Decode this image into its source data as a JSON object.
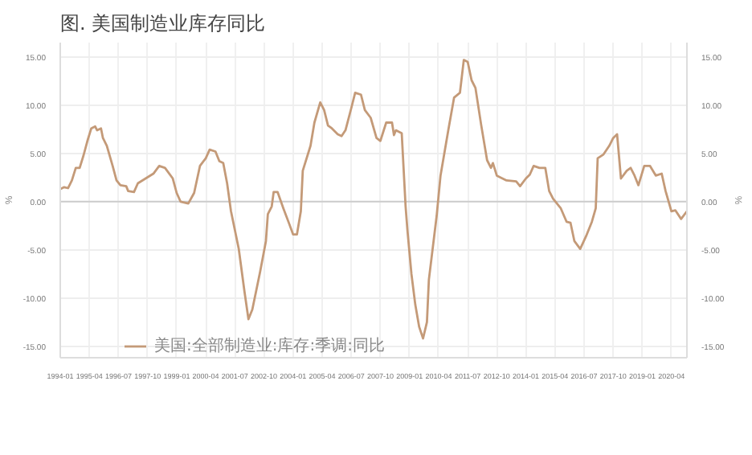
{
  "chart_data": {
    "type": "line",
    "title": "图. 美国制造业库存同比",
    "ylabel": "%",
    "y2label": "%",
    "x": [
      "1994-01",
      "1994-03",
      "1994-05",
      "1994-07",
      "1994-09",
      "1994-11",
      "1995-01",
      "1995-03",
      "1995-05",
      "1995-07",
      "1995-08",
      "1995-10",
      "1995-11",
      "1996-01",
      "1996-04",
      "1996-06",
      "1996-08",
      "1996-11",
      "1996-12",
      "1997-03",
      "1997-05",
      "1997-09",
      "1998-01",
      "1998-04",
      "1998-07",
      "1998-11",
      "1999-01",
      "1999-03",
      "1999-07",
      "1999-10",
      "2000-01",
      "2000-04",
      "2000-06",
      "2000-09",
      "2000-11",
      "2001-01",
      "2001-03",
      "2001-05",
      "2001-09",
      "2001-12",
      "2002-02",
      "2002-04",
      "2002-08",
      "2002-11",
      "2002-12",
      "2003-02",
      "2003-03",
      "2003-05",
      "2003-08",
      "2003-11",
      "2004-01",
      "2004-03",
      "2004-05",
      "2004-06",
      "2004-10",
      "2004-12",
      "2005-03",
      "2005-05",
      "2005-07",
      "2005-09",
      "2005-12",
      "2006-02",
      "2006-04",
      "2006-07",
      "2006-09",
      "2006-12",
      "2007-02",
      "2007-05",
      "2007-08",
      "2007-10",
      "2008-01",
      "2008-04",
      "2008-05",
      "2008-06",
      "2008-09",
      "2008-11",
      "2008-12",
      "2009-02",
      "2009-04",
      "2009-06",
      "2009-08",
      "2009-10",
      "2009-11",
      "2010-03",
      "2010-04",
      "2010-05",
      "2010-09",
      "2010-12",
      "2011-03",
      "2011-05",
      "2011-07",
      "2011-09",
      "2011-11",
      "2012-02",
      "2012-05",
      "2012-07",
      "2012-08",
      "2012-10",
      "2013-03",
      "2013-08",
      "2013-10",
      "2014-01",
      "2014-03",
      "2014-05",
      "2014-08",
      "2014-11",
      "2015-01",
      "2015-03",
      "2015-05",
      "2015-07",
      "2015-10",
      "2015-12",
      "2016-02",
      "2016-05",
      "2016-08",
      "2016-11",
      "2017-01",
      "2017-02",
      "2017-05",
      "2017-08",
      "2017-10",
      "2017-12",
      "2018-02",
      "2018-05",
      "2018-07",
      "2018-09",
      "2018-11",
      "2019-02",
      "2019-05",
      "2019-08",
      "2019-11",
      "2020-01",
      "2020-04",
      "2020-06",
      "2020-09",
      "2020-12"
    ],
    "series": [
      {
        "name": "美国:全部制造业:库存:季调:同比",
        "color": "#c49a78",
        "values": [
          1.3,
          1.5,
          1.4,
          2.2,
          3.5,
          3.5,
          4.8,
          6.3,
          7.6,
          7.8,
          7.4,
          7.6,
          6.6,
          5.8,
          3.7,
          2.2,
          1.7,
          1.6,
          1.1,
          1.0,
          1.9,
          2.4,
          2.9,
          3.7,
          3.5,
          2.4,
          0.9,
          0.0,
          -0.2,
          0.9,
          3.7,
          4.5,
          5.4,
          5.2,
          4.2,
          4.0,
          1.9,
          -1.0,
          -4.9,
          -9.4,
          -12.2,
          -11.2,
          -7.3,
          -4.1,
          -1.3,
          -0.5,
          1.0,
          1.0,
          -0.7,
          -2.3,
          -3.4,
          -3.4,
          -1.0,
          3.2,
          5.8,
          8.2,
          10.3,
          9.5,
          7.9,
          7.6,
          7.0,
          6.8,
          7.4,
          9.7,
          11.3,
          11.1,
          9.5,
          8.7,
          6.6,
          6.3,
          8.2,
          8.2,
          6.9,
          7.4,
          7.1,
          -0.5,
          -3.1,
          -7.5,
          -10.7,
          -13.0,
          -14.2,
          -12.5,
          -8.1,
          -1.5,
          0.6,
          2.7,
          7.4,
          10.8,
          11.3,
          14.7,
          14.5,
          12.6,
          11.8,
          7.9,
          4.3,
          3.5,
          4.0,
          2.7,
          2.2,
          2.1,
          1.6,
          2.4,
          2.8,
          3.7,
          3.5,
          3.5,
          1.1,
          0.3,
          -0.2,
          -0.7,
          -2.1,
          -2.2,
          -4.1,
          -4.9,
          -3.6,
          -2.1,
          -0.7,
          4.5,
          4.9,
          5.8,
          6.6,
          7.0,
          2.4,
          3.2,
          3.5,
          2.7,
          1.7,
          3.7,
          3.7,
          2.7,
          2.9,
          1.1,
          -1.0,
          -0.9,
          -1.8,
          -1.0
        ]
      }
    ],
    "xlim": [
      "1994-01",
      "2020-12"
    ],
    "xticks": [
      "1994-01",
      "1995-04",
      "1996-07",
      "1997-10",
      "1999-01",
      "2000-04",
      "2001-07",
      "2002-10",
      "2004-01",
      "2005-04",
      "2006-07",
      "2007-10",
      "2009-01",
      "2010-04",
      "2011-07",
      "2012-10",
      "2014-01",
      "2015-04",
      "2016-07",
      "2017-10",
      "2019-01",
      "2020-04"
    ],
    "ylim": [
      -16.2,
      16.5
    ],
    "yticks": [
      {
        "value": -15,
        "label": "-15.00"
      },
      {
        "value": -10,
        "label": "-10.00"
      },
      {
        "value": -5,
        "label": "-5.00"
      },
      {
        "value": 0,
        "label": "0.00"
      },
      {
        "value": 5,
        "label": "5.00"
      },
      {
        "value": 10,
        "label": "10.00"
      },
      {
        "value": 15,
        "label": "15.00"
      }
    ],
    "y2lim": [
      -16.2,
      16.5
    ],
    "y2ticks": [
      {
        "value": -15,
        "label": "-15.00"
      },
      {
        "value": -10,
        "label": "-10.00"
      },
      {
        "value": -5,
        "label": "-5.00"
      },
      {
        "value": 0,
        "label": "0.00"
      },
      {
        "value": 5,
        "label": "5.00"
      },
      {
        "value": 10,
        "label": "10.00"
      },
      {
        "value": 15,
        "label": "15.00"
      }
    ],
    "grid": true,
    "legend": "bottom",
    "marker": "none",
    "line_style": "solid"
  }
}
